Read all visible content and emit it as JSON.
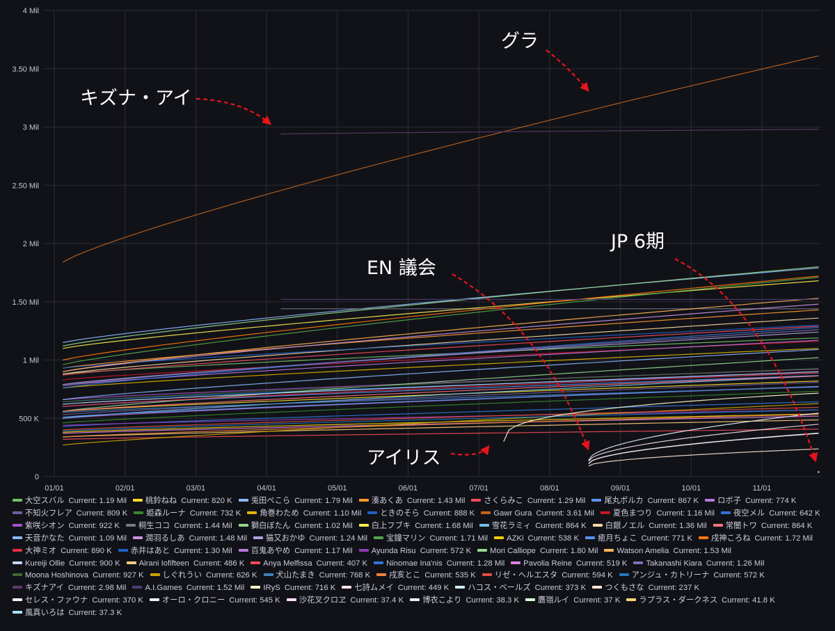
{
  "chart_data": {
    "type": "line",
    "title": "",
    "xlabel": "",
    "ylabel": "",
    "x_ticks": [
      "01/01",
      "02/01",
      "03/01",
      "04/01",
      "05/01",
      "06/01",
      "07/01",
      "08/01",
      "09/01",
      "10/01",
      "11/01"
    ],
    "y_ticks": [
      "0",
      "500 K",
      "1 Mil",
      "1.50 Mil",
      "2 Mil",
      "2.50 Mil",
      "3 Mil",
      "3.50 Mil",
      "4 Mil"
    ],
    "ylim": [
      0,
      4000000
    ],
    "xlim_months": [
      0,
      10.8
    ],
    "grid": true,
    "legend_placement": "bottom",
    "current_label": "Current:",
    "annotations": [
      {
        "text": "グラ"
      },
      {
        "text": "キズナ・アイ"
      },
      {
        "text": "EN 議会"
      },
      {
        "text": "JP 6期"
      },
      {
        "text": "アイリス"
      }
    ],
    "series": [
      {
        "name": "大空スバル",
        "current": "1.19 Mil",
        "color": "#73bf69",
        "start": 0.12,
        "v0": 880000,
        "v1": 1190000
      },
      {
        "name": "桃鈴ねね",
        "current": "820 K",
        "color": "#fade2a",
        "start": 0.12,
        "v0": 560000,
        "v1": 820000
      },
      {
        "name": "兎田ぺこら",
        "current": "1.79 Mil",
        "color": "#8ab8ff",
        "start": 0.12,
        "v0": 1150000,
        "v1": 1790000
      },
      {
        "name": "湊あくあ",
        "current": "1.43 Mil",
        "color": "#ff9830",
        "start": 0.12,
        "v0": 930000,
        "v1": 1430000
      },
      {
        "name": "さくらみこ",
        "current": "1.29 Mil",
        "color": "#f2495c",
        "start": 0.12,
        "v0": 870000,
        "v1": 1290000
      },
      {
        "name": "尾丸ポルカ",
        "current": "867 K",
        "color": "#5794f2",
        "start": 0.12,
        "v0": 600000,
        "v1": 867000
      },
      {
        "name": "ロボ子",
        "current": "774 K",
        "color": "#b877d9",
        "start": 0.12,
        "v0": 500000,
        "v1": 774000
      },
      {
        "name": "不知火フレア",
        "current": "809 K",
        "color": "#705da0",
        "start": 0.12,
        "v0": 530000,
        "v1": 809000
      },
      {
        "name": "姫森ルーナ",
        "current": "732 K",
        "color": "#37872d",
        "start": 0.12,
        "v0": 460000,
        "v1": 732000
      },
      {
        "name": "角巻わため",
        "current": "1.10 Mil",
        "color": "#e0b400",
        "start": 0.12,
        "v0": 760000,
        "v1": 1100000
      },
      {
        "name": "ときのそら",
        "current": "888 K",
        "color": "#1f60c4",
        "start": 0.12,
        "v0": 640000,
        "v1": 888000
      },
      {
        "name": "Gawr Gura",
        "current": "3.61 Mil",
        "color": "#c4651d",
        "start": 0.12,
        "v0": 1840000,
        "v1": 3610000
      },
      {
        "name": "夏色まつり",
        "current": "1.16 Mil",
        "color": "#c4162a",
        "start": 0.12,
        "v0": 830000,
        "v1": 1160000
      },
      {
        "name": "夜空メル",
        "current": "642 K",
        "color": "#3274d9",
        "start": 0.12,
        "v0": 430000,
        "v1": 642000
      },
      {
        "name": "紫咲シオン",
        "current": "922 K",
        "color": "#a352cc",
        "start": 0.12,
        "v0": 660000,
        "v1": 922000
      },
      {
        "name": "桐生ココ",
        "current": "1.44 Mil",
        "color": "#7a7a8c",
        "start": 3.2,
        "v0": 1440000,
        "v1": 1440000
      },
      {
        "name": "獅白ぼたん",
        "current": "1.02 Mil",
        "color": "#96d98d",
        "start": 0.12,
        "v0": 560000,
        "v1": 1020000
      },
      {
        "name": "白上フブキ",
        "current": "1.68 Mil",
        "color": "#ffee52",
        "start": 0.12,
        "v0": 1100000,
        "v1": 1680000
      },
      {
        "name": "雪花ラミィ",
        "current": "864 K",
        "color": "#73bfe8",
        "start": 0.12,
        "v0": 500000,
        "v1": 864000
      },
      {
        "name": "白銀ノエル",
        "current": "1.36 Mil",
        "color": "#fad9a1",
        "start": 0.12,
        "v0": 880000,
        "v1": 1360000
      },
      {
        "name": "常闇トワ",
        "current": "864 K",
        "color": "#ff7383",
        "start": 0.12,
        "v0": 560000,
        "v1": 864000
      },
      {
        "name": "天音かなた",
        "current": "1.09 Mil",
        "color": "#8ab8ff",
        "start": 0.12,
        "v0": 660000,
        "v1": 1090000
      },
      {
        "name": "潤羽るしあ",
        "current": "1.48 Mil",
        "color": "#ca95e5",
        "start": 0.12,
        "v0": 900000,
        "v1": 1480000
      },
      {
        "name": "猫又おかゆ",
        "current": "1.24 Mil",
        "color": "#aea2e0",
        "start": 0.12,
        "v0": 790000,
        "v1": 1240000
      },
      {
        "name": "宝鐘マリン",
        "current": "1.71 Mil",
        "color": "#56a64b",
        "start": 0.12,
        "v0": 960000,
        "v1": 1710000
      },
      {
        "name": "AZKi",
        "current": "538 K",
        "color": "#f2cc0c",
        "start": 0.12,
        "v0": 380000,
        "v1": 538000
      },
      {
        "name": "癒月ちょこ",
        "current": "771 K",
        "color": "#5794f2",
        "start": 0.12,
        "v0": 510000,
        "v1": 771000
      },
      {
        "name": "戌神ころね",
        "current": "1.72 Mil",
        "color": "#ff780a",
        "start": 0.12,
        "v0": 1000000,
        "v1": 1720000
      },
      {
        "name": "大神ミオ",
        "current": "890 K",
        "color": "#e02f44",
        "start": 0.12,
        "v0": 600000,
        "v1": 890000
      },
      {
        "name": "赤井はあと",
        "current": "1.30 Mil",
        "color": "#1f60c4",
        "start": 0.12,
        "v0": 930000,
        "v1": 1300000
      },
      {
        "name": "百鬼あやめ",
        "current": "1.17 Mil",
        "color": "#b877d9",
        "start": 0.12,
        "v0": 780000,
        "v1": 1170000
      },
      {
        "name": "Ayunda Risu",
        "current": "572 K",
        "color": "#8f3bb8",
        "start": 0.12,
        "v0": 440000,
        "v1": 572000
      },
      {
        "name": "Mori Calliope",
        "current": "1.80 Mil",
        "color": "#96d98d",
        "start": 0.12,
        "v0": 1120000,
        "v1": 1800000
      },
      {
        "name": "Watson Amelia",
        "current": "1.53 Mil",
        "color": "#ffb357",
        "start": 0.12,
        "v0": 900000,
        "v1": 1530000
      },
      {
        "name": "Kureiji Ollie",
        "current": "900 K",
        "color": "#c0d8ff",
        "start": 0.12,
        "v0": 620000,
        "v1": 900000
      },
      {
        "name": "Airani Iofifteen",
        "current": "486 K",
        "color": "#ffcb7d",
        "start": 0.12,
        "v0": 340000,
        "v1": 486000
      },
      {
        "name": "Anya Melfissa",
        "current": "407 K",
        "color": "#f2495c",
        "start": 0.12,
        "v0": 320000,
        "v1": 407000
      },
      {
        "name": "Ninomae Ina'nis",
        "current": "1.28 Mil",
        "color": "#3274d9",
        "start": 0.12,
        "v0": 760000,
        "v1": 1280000
      },
      {
        "name": "Pavolia Reine",
        "current": "519 K",
        "color": "#de80e0",
        "start": 0.12,
        "v0": 370000,
        "v1": 519000
      },
      {
        "name": "Takanashi Kiara",
        "current": "1.26 Mil",
        "color": "#806eb7",
        "start": 0.12,
        "v0": 780000,
        "v1": 1260000
      },
      {
        "name": "Moona Hoshinova",
        "current": "927 K",
        "color": "#3f6833",
        "start": 0.12,
        "v0": 640000,
        "v1": 927000
      },
      {
        "name": "しぐれうい",
        "current": "626 K",
        "color": "#cca300",
        "start": 0.12,
        "v0": 270000,
        "v1": 626000
      },
      {
        "name": "犬山たまき",
        "current": "768 K",
        "color": "#447ebc",
        "start": 0.12,
        "v0": 550000,
        "v1": 768000
      },
      {
        "name": "戌亥とこ",
        "current": "535 K",
        "color": "#ef843c",
        "start": 0.12,
        "v0": 340000,
        "v1": 535000
      },
      {
        "name": "リゼ・ヘルエスタ",
        "current": "594 K",
        "color": "#e24d42",
        "start": 0.12,
        "v0": 400000,
        "v1": 594000
      },
      {
        "name": "アンジュ・カトリーナ",
        "current": "572 K",
        "color": "#1f78c1",
        "start": 0.12,
        "v0": 390000,
        "v1": 572000
      },
      {
        "name": "キズナアイ",
        "current": "2.98 Mil",
        "color": "#5e3a6e",
        "start": 3.2,
        "v0": 2940000,
        "v1": 2980000
      },
      {
        "name": "A.I.Games",
        "current": "1.52 Mil",
        "color": "#4a3f78",
        "start": 3.2,
        "v0": 1520000,
        "v1": 1520000
      },
      {
        "name": "IRyS",
        "current": "716 K",
        "color": "#ffffcc",
        "start": 6.35,
        "v0": 300000,
        "v1": 716000
      },
      {
        "name": "七詩ムメイ",
        "current": "449 K",
        "color": "#ffe6f0",
        "start": 7.55,
        "v0": 130000,
        "v1": 449000
      },
      {
        "name": "ハコス・ベールズ",
        "current": "373 K",
        "color": "#d0ecff",
        "start": 7.55,
        "v0": 110000,
        "v1": 373000
      },
      {
        "name": "つくもさな",
        "current": "237 K",
        "color": "#ffe5d9",
        "start": 7.55,
        "v0": 90000,
        "v1": 237000
      },
      {
        "name": "セレス・ファウナ",
        "current": "370 K",
        "color": "#fff0f0",
        "start": 7.55,
        "v0": 110000,
        "v1": 370000
      },
      {
        "name": "オーロ・クロニー",
        "current": "545 K",
        "color": "#e8f4ff",
        "start": 7.55,
        "v0": 140000,
        "v1": 545000
      },
      {
        "name": "沙花叉クロヱ",
        "current": "37.4 K",
        "color": "#ffe0ff",
        "start": 10.78,
        "v0": 37400,
        "v1": 37400
      },
      {
        "name": "博衣こより",
        "current": "38.3 K",
        "color": "#eeeeff",
        "start": 10.78,
        "v0": 38300,
        "v1": 38300
      },
      {
        "name": "鷹嶺ルイ",
        "current": "37 K",
        "color": "#d8ffd8",
        "start": 10.78,
        "v0": 37000,
        "v1": 37000
      },
      {
        "name": "ラプラス・ダークネス",
        "current": "41.8 K",
        "color": "#ffd27a",
        "start": 10.78,
        "v0": 41800,
        "v1": 41800
      },
      {
        "name": "風真いろは",
        "current": "37.3 K",
        "color": "#a8e0ff",
        "start": 10.78,
        "v0": 37300,
        "v1": 37300
      }
    ]
  }
}
